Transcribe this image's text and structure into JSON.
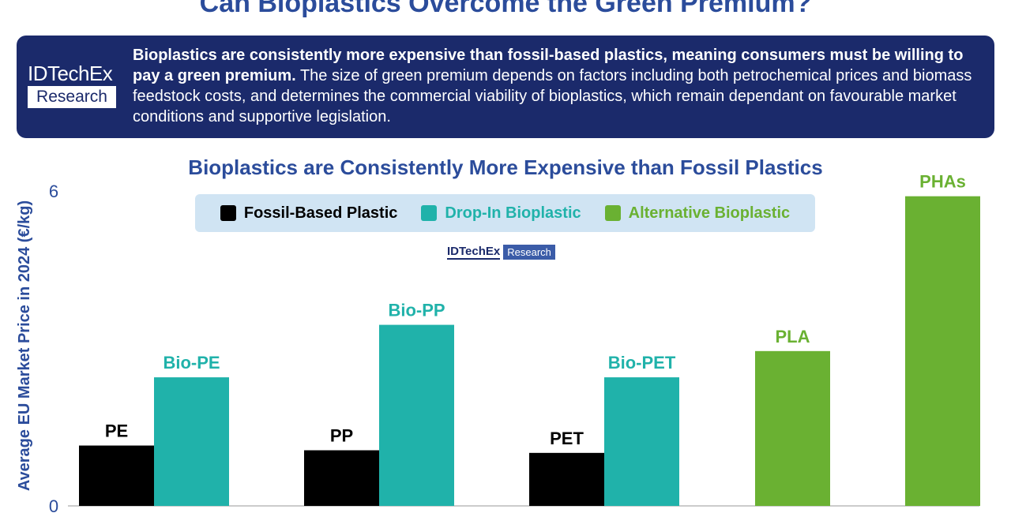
{
  "header": {
    "title": "Can Bioplastics Overcome the Green Premium?"
  },
  "banner": {
    "logo_brand": "IDTechEx",
    "logo_sub": "Research",
    "bold_text": "Bioplastics are consistently more expensive than fossil-based plastics, meaning consumers must be willing to pay a green premium.",
    "body_text": " The size of green premium depends on factors including both petrochemical prices and biomass feedstock costs, and determines the commercial viability of bioplastics, which remain dependant on favourable market conditions and supportive legislation."
  },
  "chart_logo": {
    "brand": "IDTechEx",
    "sub": "Research"
  },
  "chart_data": {
    "type": "bar",
    "title": "Bioplastics are Consistently More Expensive than Fossil Plastics",
    "xlabel": "",
    "ylabel": "Average EU Market Price in 2024 (€/kg)",
    "ylim": [
      0,
      6
    ],
    "yticks": [
      "0",
      "6"
    ],
    "grid": false,
    "legend_position": "top",
    "legend": [
      {
        "name": "Fossil-Based Plastic",
        "color": "#000000",
        "text_color": "#000000"
      },
      {
        "name": "Drop-In Bioplastic",
        "color": "#20b2aa",
        "text_color": "#20b2aa"
      },
      {
        "name": "Alternative Bioplastic",
        "color": "#6ab132",
        "text_color": "#6ab132"
      }
    ],
    "bars": [
      {
        "label": "PE",
        "value": 1.15,
        "type": "fossil"
      },
      {
        "label": "Bio-PE",
        "value": 2.45,
        "type": "dropin"
      },
      {
        "label": "PP",
        "value": 1.06,
        "type": "fossil"
      },
      {
        "label": "Bio-PP",
        "value": 3.45,
        "type": "dropin"
      },
      {
        "label": "PET",
        "value": 1.01,
        "type": "fossil"
      },
      {
        "label": "Bio-PET",
        "value": 2.45,
        "type": "dropin"
      },
      {
        "label": "PLA",
        "value": 2.95,
        "type": "alt"
      },
      {
        "label": "PHAs",
        "value": 5.9,
        "type": "alt"
      }
    ],
    "colors": {
      "fossil": "#000000",
      "dropin": "#20b2aa",
      "alt": "#6ab132"
    },
    "label_colors": {
      "fossil": "#000000",
      "dropin": "#20b2aa",
      "alt": "#6ab132"
    }
  }
}
